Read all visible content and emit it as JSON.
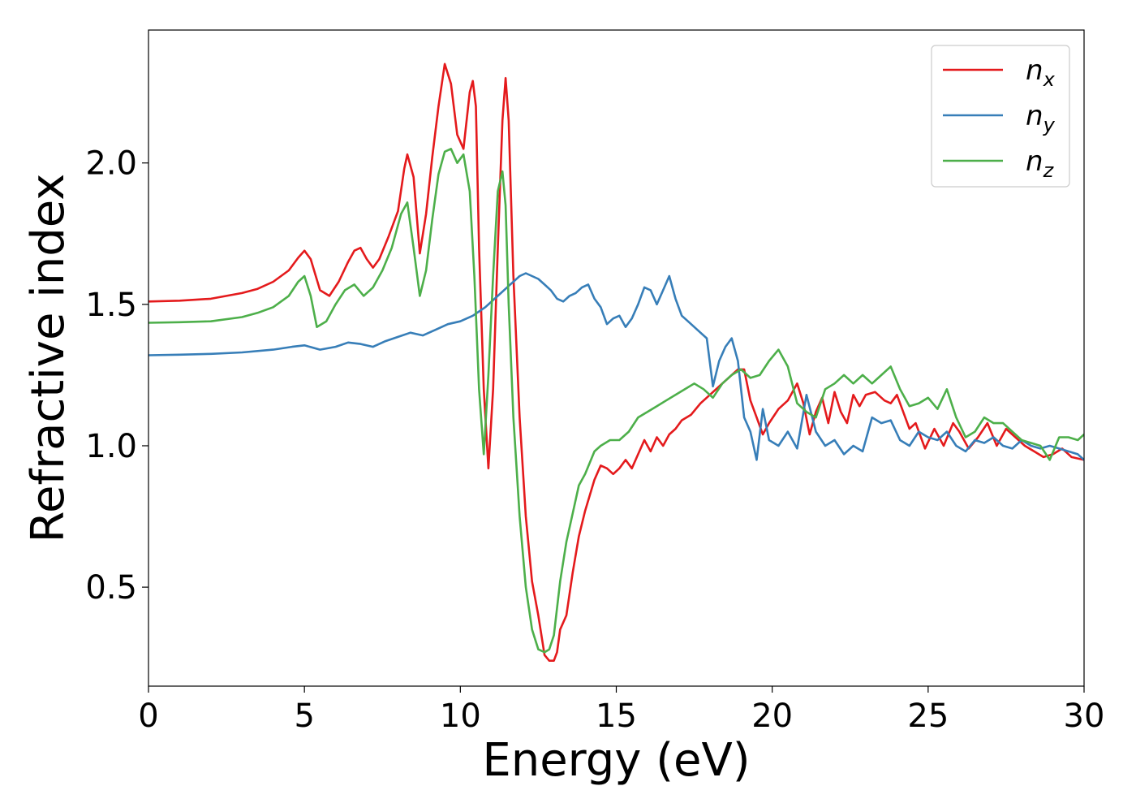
{
  "chart_data": {
    "type": "line",
    "title": "",
    "xlabel": "Energy (eV)",
    "ylabel": "Refractive index",
    "xlim": [
      0,
      30
    ],
    "ylim": [
      0.15,
      2.47
    ],
    "xticks": [
      0,
      5,
      10,
      15,
      20,
      25,
      30
    ],
    "yticks": [
      0.5,
      1.0,
      1.5,
      2.0
    ],
    "xtick_labels": [
      "0",
      "5",
      "10",
      "15",
      "20",
      "25",
      "30"
    ],
    "ytick_labels": [
      "0.5",
      "1.0",
      "1.5",
      "2.0"
    ],
    "grid": false,
    "legend_position": "top-right",
    "series": [
      {
        "name": "n",
        "subscript": "x",
        "color": "#e41a1c",
        "x": [
          0,
          1,
          2,
          3,
          3.5,
          4,
          4.5,
          4.8,
          5,
          5.2,
          5.5,
          5.8,
          6.1,
          6.4,
          6.6,
          6.8,
          7,
          7.2,
          7.4,
          7.7,
          8,
          8.2,
          8.3,
          8.5,
          8.7,
          8.9,
          9.1,
          9.3,
          9.5,
          9.7,
          9.9,
          10.1,
          10.3,
          10.4,
          10.5,
          10.6,
          10.75,
          10.9,
          11.05,
          11.2,
          11.35,
          11.45,
          11.55,
          11.7,
          11.9,
          12.1,
          12.3,
          12.5,
          12.7,
          12.85,
          13,
          13.1,
          13.2,
          13.4,
          13.6,
          13.8,
          14,
          14.3,
          14.5,
          14.7,
          14.9,
          15.1,
          15.3,
          15.5,
          15.7,
          15.9,
          16.1,
          16.3,
          16.5,
          16.7,
          16.9,
          17.1,
          17.4,
          17.7,
          18,
          18.3,
          18.6,
          18.9,
          19.1,
          19.3,
          19.5,
          19.7,
          19.9,
          20.2,
          20.5,
          20.8,
          21,
          21.2,
          21.4,
          21.6,
          21.8,
          22,
          22.2,
          22.4,
          22.6,
          22.8,
          23,
          23.3,
          23.6,
          23.8,
          24,
          24.2,
          24.4,
          24.6,
          24.9,
          25.2,
          25.5,
          25.8,
          26,
          26.3,
          26.6,
          26.9,
          27.2,
          27.5,
          27.8,
          28.1,
          28.4,
          28.7,
          29,
          29.3,
          29.6,
          30
        ],
        "y": [
          1.51,
          1.513,
          1.52,
          1.54,
          1.555,
          1.58,
          1.62,
          1.665,
          1.69,
          1.66,
          1.55,
          1.53,
          1.58,
          1.65,
          1.69,
          1.7,
          1.66,
          1.63,
          1.66,
          1.74,
          1.83,
          1.98,
          2.03,
          1.95,
          1.68,
          1.82,
          2.02,
          2.2,
          2.35,
          2.28,
          2.1,
          2.05,
          2.25,
          2.29,
          2.2,
          1.7,
          1.2,
          0.92,
          1.2,
          1.7,
          2.15,
          2.3,
          2.15,
          1.6,
          1.1,
          0.75,
          0.52,
          0.4,
          0.26,
          0.24,
          0.24,
          0.27,
          0.35,
          0.4,
          0.55,
          0.68,
          0.77,
          0.88,
          0.93,
          0.92,
          0.9,
          0.92,
          0.95,
          0.92,
          0.97,
          1.02,
          0.98,
          1.03,
          1.0,
          1.04,
          1.06,
          1.09,
          1.11,
          1.15,
          1.18,
          1.21,
          1.24,
          1.27,
          1.27,
          1.16,
          1.1,
          1.04,
          1.08,
          1.13,
          1.16,
          1.22,
          1.15,
          1.04,
          1.12,
          1.17,
          1.08,
          1.19,
          1.12,
          1.08,
          1.18,
          1.14,
          1.18,
          1.19,
          1.16,
          1.15,
          1.18,
          1.12,
          1.06,
          1.08,
          0.99,
          1.06,
          1.0,
          1.08,
          1.05,
          0.99,
          1.03,
          1.08,
          1.0,
          1.06,
          1.03,
          1.0,
          0.98,
          0.96,
          0.97,
          0.99,
          0.96,
          0.95
        ]
      },
      {
        "name": "n",
        "subscript": "y",
        "color": "#377eb8",
        "x": [
          0,
          1,
          2,
          3,
          4,
          4.6,
          5,
          5.5,
          6,
          6.4,
          6.8,
          7.2,
          7.6,
          8,
          8.4,
          8.8,
          9.2,
          9.6,
          10,
          10.4,
          10.8,
          11.2,
          11.6,
          11.9,
          12.1,
          12.3,
          12.5,
          12.7,
          12.9,
          13.1,
          13.3,
          13.5,
          13.7,
          13.9,
          14.1,
          14.3,
          14.5,
          14.7,
          14.9,
          15.1,
          15.3,
          15.5,
          15.7,
          15.9,
          16.1,
          16.3,
          16.5,
          16.7,
          16.9,
          17.1,
          17.3,
          17.5,
          17.7,
          17.9,
          18.1,
          18.3,
          18.5,
          18.7,
          18.9,
          19.1,
          19.3,
          19.5,
          19.7,
          19.9,
          20.2,
          20.5,
          20.8,
          21.1,
          21.4,
          21.7,
          22,
          22.3,
          22.6,
          22.9,
          23.2,
          23.5,
          23.8,
          24.1,
          24.4,
          24.7,
          25,
          25.3,
          25.6,
          25.9,
          26.2,
          26.5,
          26.8,
          27.1,
          27.4,
          27.7,
          28,
          28.3,
          28.6,
          28.9,
          29.2,
          29.5,
          29.8,
          30
        ],
        "y": [
          1.32,
          1.322,
          1.325,
          1.33,
          1.34,
          1.35,
          1.355,
          1.34,
          1.35,
          1.365,
          1.36,
          1.35,
          1.37,
          1.385,
          1.4,
          1.39,
          1.41,
          1.43,
          1.44,
          1.46,
          1.49,
          1.53,
          1.57,
          1.6,
          1.61,
          1.6,
          1.59,
          1.57,
          1.55,
          1.52,
          1.51,
          1.53,
          1.54,
          1.56,
          1.57,
          1.52,
          1.49,
          1.43,
          1.45,
          1.46,
          1.42,
          1.45,
          1.5,
          1.56,
          1.55,
          1.5,
          1.55,
          1.6,
          1.52,
          1.46,
          1.44,
          1.42,
          1.4,
          1.38,
          1.21,
          1.3,
          1.35,
          1.38,
          1.3,
          1.1,
          1.05,
          0.95,
          1.13,
          1.02,
          1.0,
          1.05,
          0.99,
          1.18,
          1.05,
          1.0,
          1.02,
          0.97,
          1.0,
          0.98,
          1.1,
          1.08,
          1.09,
          1.02,
          1.0,
          1.05,
          1.03,
          1.02,
          1.05,
          1.0,
          0.98,
          1.02,
          1.01,
          1.03,
          1.0,
          0.99,
          1.02,
          1.0,
          0.99,
          1.0,
          0.99,
          0.98,
          0.97,
          0.95
        ]
      },
      {
        "name": "n",
        "subscript": "z",
        "color": "#4daf4a",
        "x": [
          0,
          1,
          2,
          3,
          3.5,
          4,
          4.5,
          4.8,
          5,
          5.2,
          5.4,
          5.7,
          6,
          6.3,
          6.6,
          6.9,
          7.2,
          7.5,
          7.8,
          8.1,
          8.3,
          8.5,
          8.7,
          8.9,
          9.1,
          9.3,
          9.5,
          9.7,
          9.9,
          10.1,
          10.3,
          10.45,
          10.6,
          10.75,
          10.9,
          11.05,
          11.2,
          11.35,
          11.45,
          11.55,
          11.7,
          11.9,
          12.1,
          12.3,
          12.5,
          12.7,
          12.85,
          13,
          13.2,
          13.4,
          13.6,
          13.8,
          14,
          14.3,
          14.5,
          14.8,
          15.1,
          15.4,
          15.7,
          16,
          16.3,
          16.6,
          16.9,
          17.2,
          17.5,
          17.8,
          18.1,
          18.4,
          18.7,
          19,
          19.3,
          19.6,
          19.9,
          20.2,
          20.5,
          20.8,
          21.1,
          21.4,
          21.7,
          22,
          22.3,
          22.6,
          22.9,
          23.2,
          23.5,
          23.8,
          24.1,
          24.4,
          24.7,
          25,
          25.3,
          25.6,
          25.9,
          26.2,
          26.5,
          26.8,
          27.1,
          27.4,
          27.7,
          28,
          28.3,
          28.6,
          28.9,
          29.2,
          29.5,
          29.8,
          30
        ],
        "y": [
          1.435,
          1.437,
          1.44,
          1.455,
          1.47,
          1.49,
          1.53,
          1.58,
          1.6,
          1.53,
          1.42,
          1.44,
          1.5,
          1.55,
          1.57,
          1.53,
          1.56,
          1.62,
          1.7,
          1.82,
          1.86,
          1.7,
          1.53,
          1.62,
          1.8,
          1.96,
          2.04,
          2.05,
          2.0,
          2.03,
          1.9,
          1.6,
          1.2,
          0.97,
          1.25,
          1.6,
          1.9,
          1.97,
          1.85,
          1.5,
          1.1,
          0.75,
          0.5,
          0.35,
          0.28,
          0.27,
          0.28,
          0.33,
          0.52,
          0.66,
          0.76,
          0.86,
          0.9,
          0.98,
          1.0,
          1.02,
          1.02,
          1.05,
          1.1,
          1.12,
          1.14,
          1.16,
          1.18,
          1.2,
          1.22,
          1.2,
          1.17,
          1.22,
          1.25,
          1.27,
          1.24,
          1.25,
          1.3,
          1.34,
          1.28,
          1.15,
          1.12,
          1.1,
          1.2,
          1.22,
          1.25,
          1.22,
          1.25,
          1.22,
          1.25,
          1.28,
          1.2,
          1.14,
          1.15,
          1.17,
          1.13,
          1.2,
          1.1,
          1.03,
          1.05,
          1.1,
          1.08,
          1.08,
          1.05,
          1.02,
          1.01,
          1.0,
          0.95,
          1.03,
          1.03,
          1.02,
          1.04
        ]
      }
    ]
  }
}
